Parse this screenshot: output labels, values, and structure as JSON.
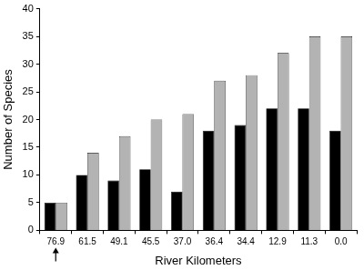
{
  "chart_data": {
    "type": "bar",
    "x_label": "River Kilometers",
    "y_label": "Number of Species",
    "categories": [
      "76.9",
      "61.5",
      "49.1",
      "45.5",
      "37.0",
      "36.4",
      "34.4",
      "12.9",
      "11.3",
      "0.0"
    ],
    "series": [
      {
        "color": "#000000",
        "values": [
          5,
          10,
          9,
          11,
          7,
          18,
          19,
          22,
          22,
          18
        ]
      },
      {
        "color": "#b3b3b3",
        "values": [
          5,
          14,
          17,
          20,
          21,
          27,
          28,
          32,
          35,
          35
        ]
      }
    ],
    "ylim": [
      0,
      40
    ],
    "yticks": [
      0,
      5,
      10,
      15,
      20,
      25,
      30,
      35,
      40
    ],
    "grid": false
  }
}
